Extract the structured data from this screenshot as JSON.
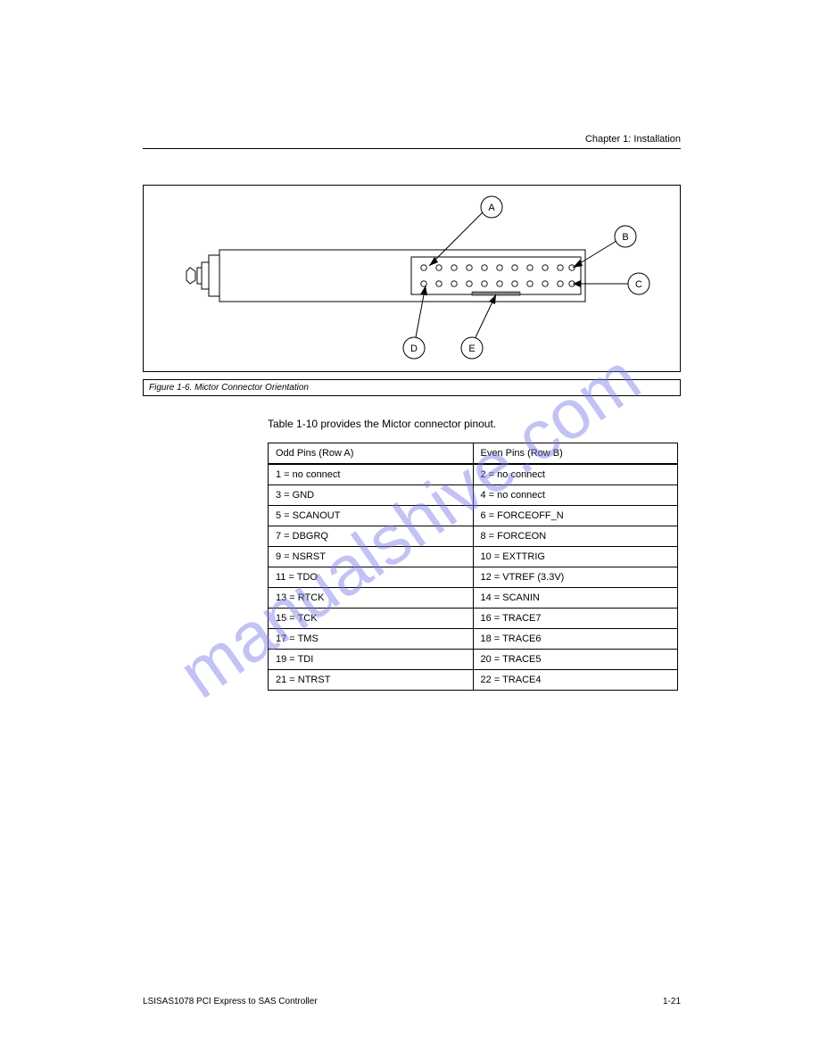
{
  "header": "Chapter 1: Installation",
  "watermark": "manualshive.com",
  "figure": {
    "callouts": {
      "a": "A",
      "b": "B",
      "c": "C",
      "d": "D",
      "e": "E"
    },
    "caption": "Figure 1-6. Mictor Connector Orientation",
    "colors": {
      "outline": "#000000",
      "bg": "#ffffff",
      "pad_fill": "#808080"
    }
  },
  "table": {
    "intro": "Table 1-10 provides the Mictor connector pinout.",
    "rows": [
      [
        "Odd Pins (Row A)",
        "Even Pins (Row B)"
      ],
      [
        "1 = no connect",
        "2 = no connect"
      ],
      [
        "3 = GND",
        "4 = no connect"
      ],
      [
        "5 = SCANOUT",
        "6 = FORCEOFF_N"
      ],
      [
        "7 = DBGRQ",
        "8 = FORCEON"
      ],
      [
        "9 = NSRST",
        "10 = EXTTRIG"
      ],
      [
        "11 = TDO",
        "12 = VTREF (3.3V)"
      ],
      [
        "13 = RTCK",
        "14 = SCANIN"
      ],
      [
        "15 = TCK",
        "16 = TRACE7"
      ],
      [
        "17 = TMS",
        "18 = TRACE6"
      ],
      [
        "19 = TDI",
        "20 = TRACE5"
      ],
      [
        "21 = NTRST",
        "22 = TRACE4"
      ]
    ]
  },
  "footer": {
    "left": "LSISAS1078 PCI Express to SAS Controller",
    "right": "1-21"
  }
}
